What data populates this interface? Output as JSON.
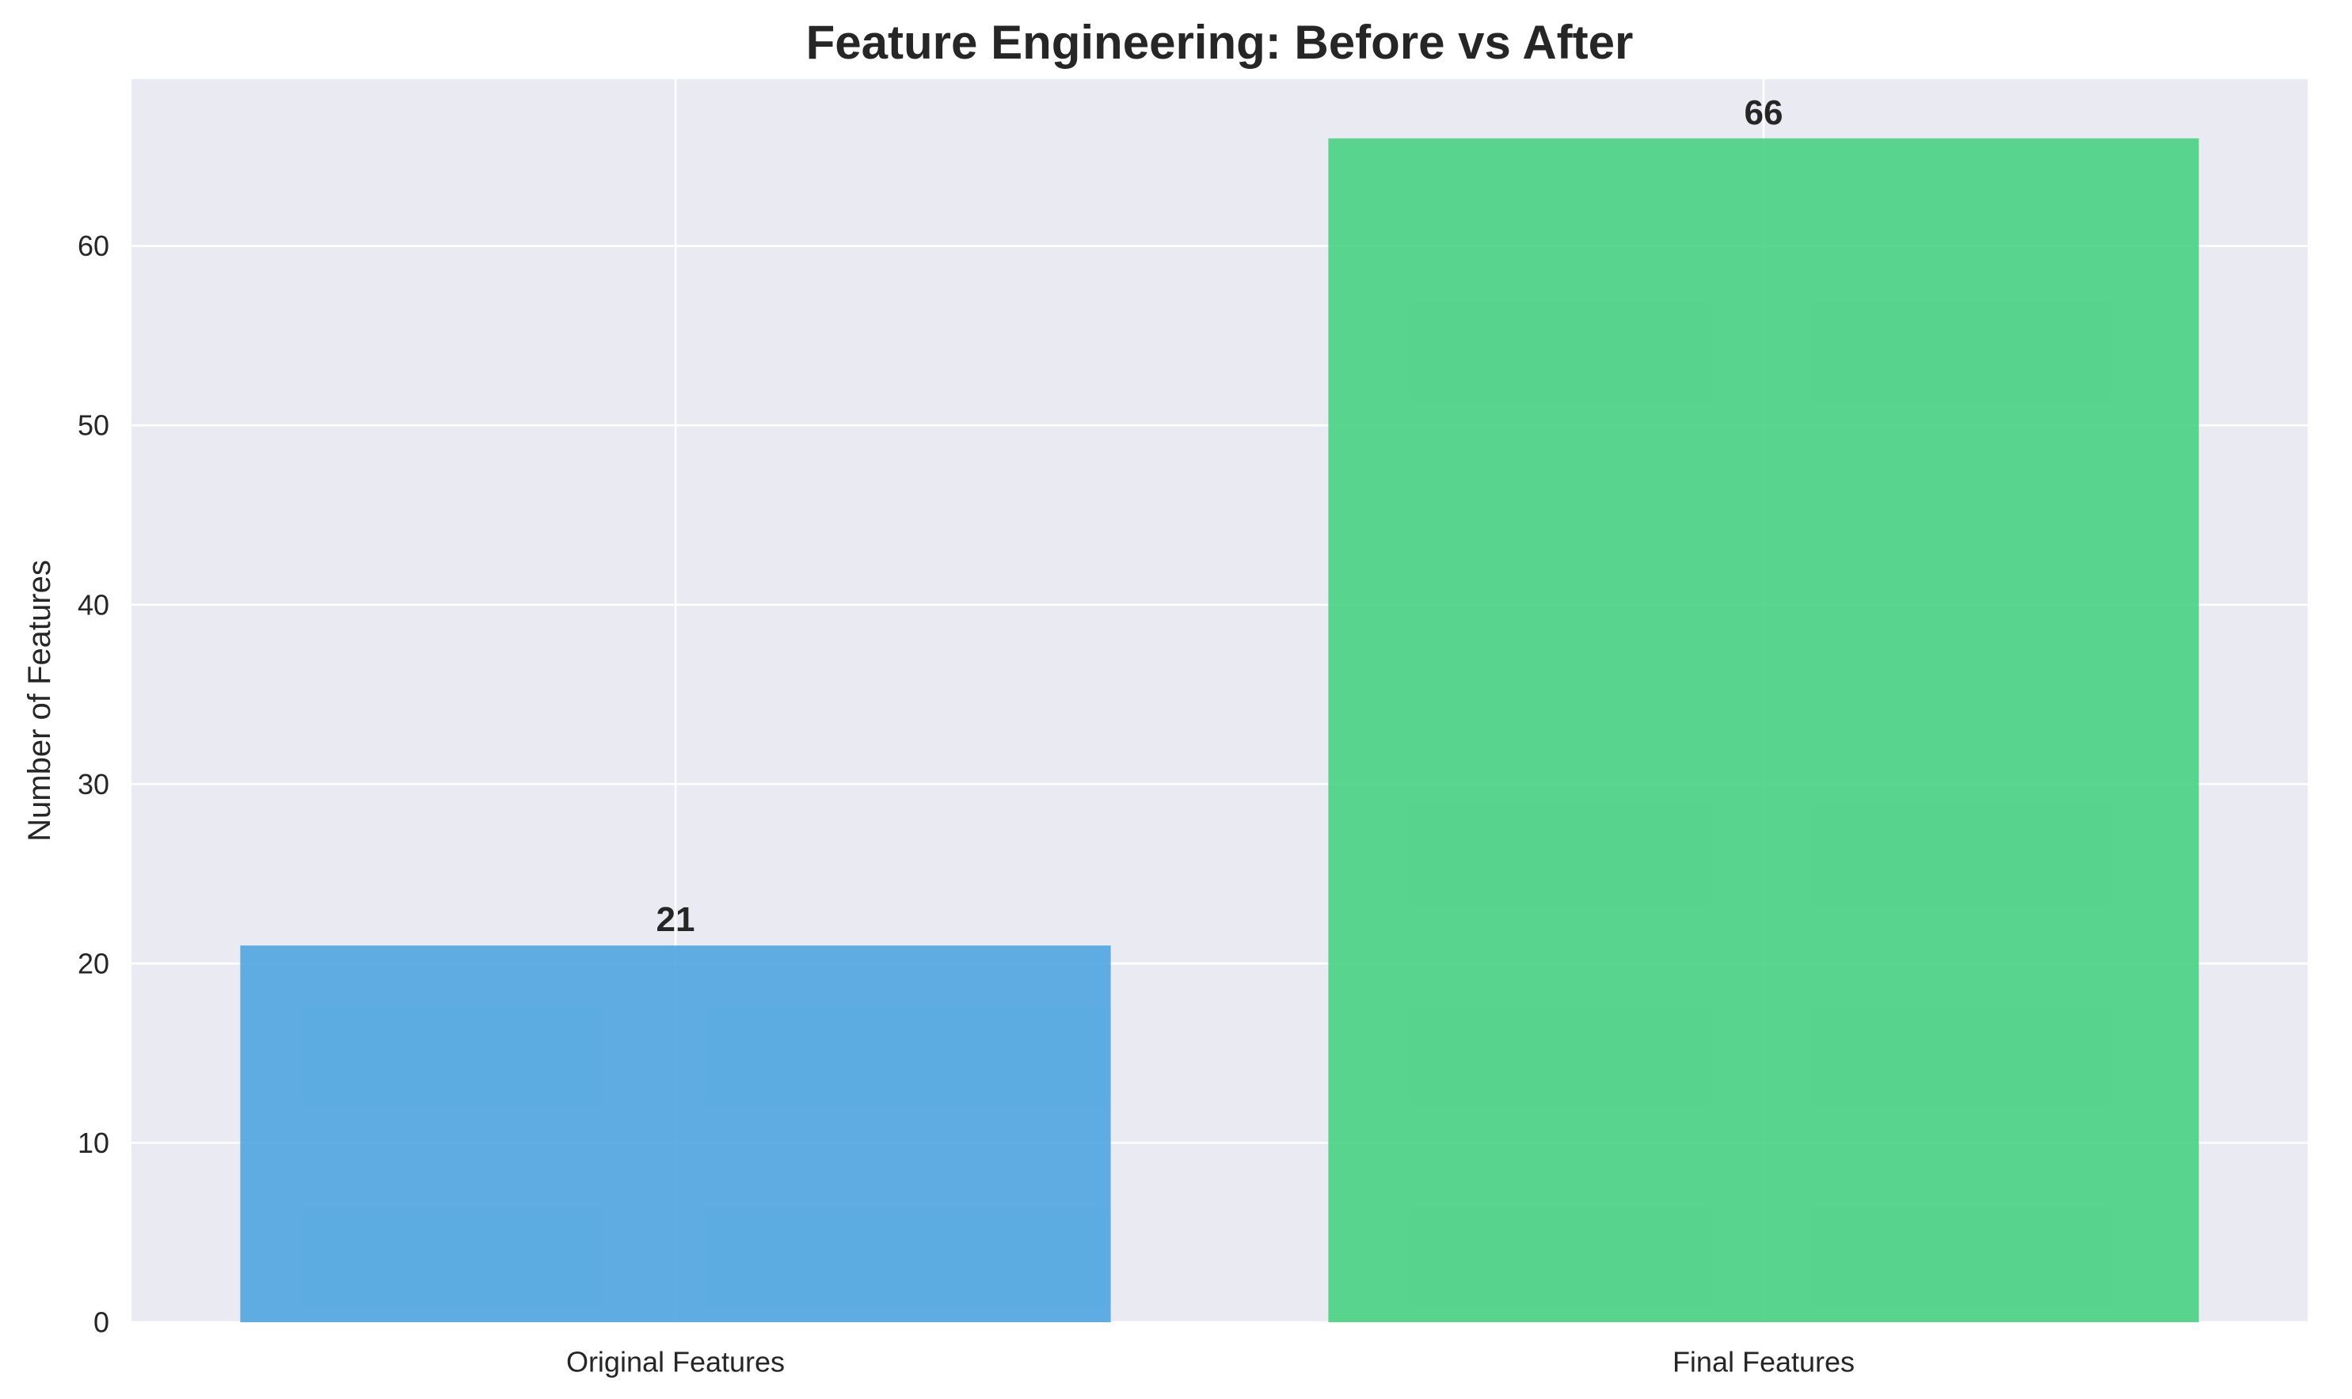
{
  "chart_data": {
    "type": "bar",
    "title": "Feature Engineering: Before vs After",
    "xlabel": "",
    "ylabel": "Number of Features",
    "categories": [
      "Original Features",
      "Final Features"
    ],
    "values": [
      21,
      66
    ],
    "data_labels": [
      "21",
      "66"
    ],
    "bar_colors": [
      "#4aa3df",
      "#44d07f"
    ],
    "ylim": [
      0,
      69.3
    ],
    "yticks": [
      0,
      10,
      20,
      30,
      40,
      50,
      60
    ],
    "grid": true,
    "legend": "none"
  },
  "colors": {
    "plot_background": "#eaeaf2",
    "grid": "#ffffff",
    "text": "#262626"
  }
}
